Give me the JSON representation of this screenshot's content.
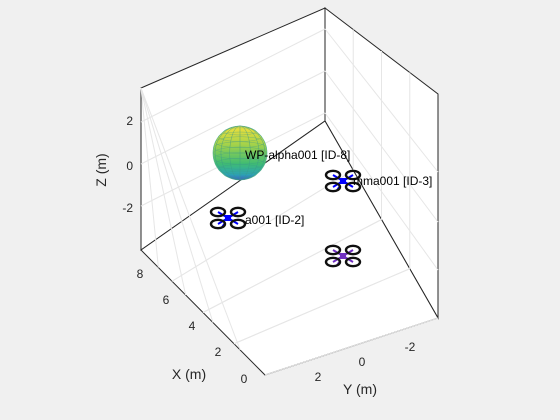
{
  "chart_data": {
    "type": "scatter",
    "title": "",
    "xlabel": "X (m)",
    "ylabel": "Y (m)",
    "zlabel": "Z (m)",
    "x_ticks": [
      "0",
      "2",
      "4",
      "6",
      "8"
    ],
    "y_ticks": [
      "2",
      "0",
      "-2"
    ],
    "z_ticks": [
      "2",
      "0",
      "-2"
    ],
    "xlim": [
      0,
      9
    ],
    "ylim": [
      -3.5,
      3.5
    ],
    "zlim": [
      -4,
      3.5
    ],
    "grid": true,
    "waypoint": {
      "label": "WP-alpha001 [ID-8]",
      "shape": "sphere",
      "colormap": [
        "#f3e03a",
        "#a2d24a",
        "#3fbc73",
        "#2ba3b4",
        "#3b60c2"
      ]
    },
    "drones": [
      {
        "label": "a001 [ID-2]",
        "color": "#0000ff"
      },
      {
        "label": "mma001 [ID-3]",
        "color": "#0000ff"
      },
      {
        "label": "",
        "color": "#7030c0"
      }
    ]
  }
}
